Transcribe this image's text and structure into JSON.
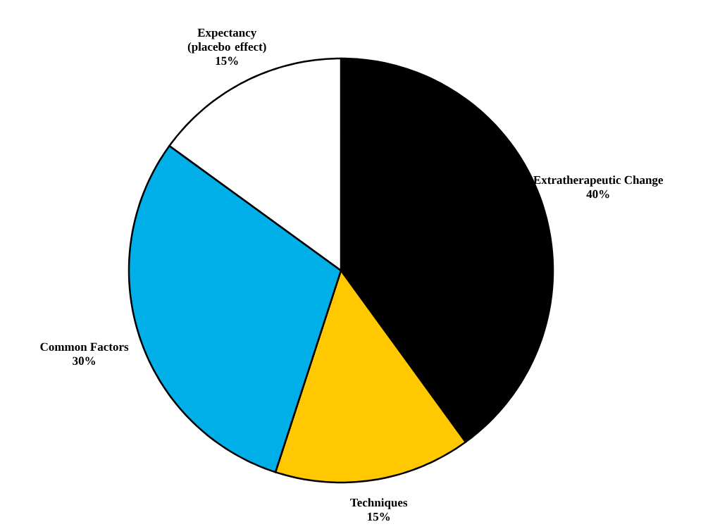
{
  "chart_data": {
    "type": "pie",
    "categories": [
      "Extratherapeutic Change",
      "Techniques",
      "Common Factors",
      "Expectancy (placebo effect)"
    ],
    "values": [
      40,
      15,
      30,
      15
    ],
    "colors": [
      "#000000",
      "#ffc800",
      "#00aee8",
      "#ffffff"
    ],
    "value_labels": [
      "40%",
      "15%",
      "30%",
      "15%"
    ]
  }
}
